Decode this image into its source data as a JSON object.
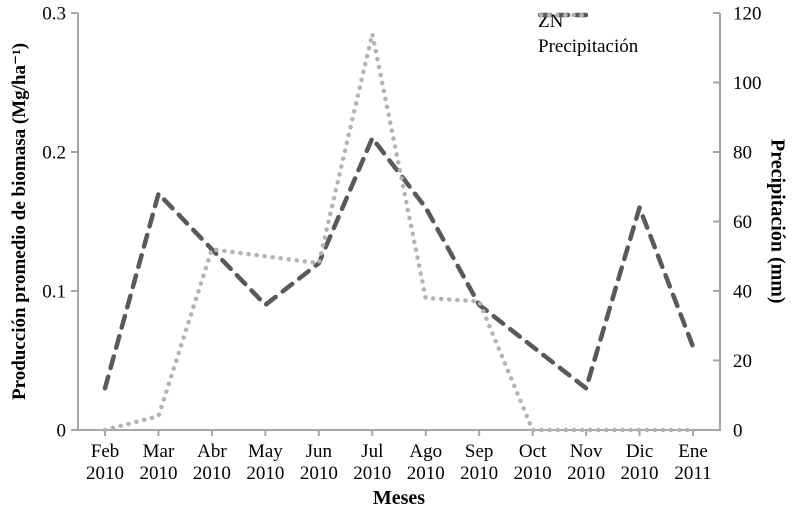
{
  "chart_data": {
    "type": "line",
    "title": "",
    "grid": false,
    "legend_position": "top-right",
    "x_axis": {
      "label": "Meses",
      "categories": [
        {
          "month": "Feb",
          "year": "2010"
        },
        {
          "month": "Mar",
          "year": "2010"
        },
        {
          "month": "Abr",
          "year": "2010"
        },
        {
          "month": "May",
          "year": "2010"
        },
        {
          "month": "Jun",
          "year": "2010"
        },
        {
          "month": "Jul",
          "year": "2010"
        },
        {
          "month": "Ago",
          "year": "2010"
        },
        {
          "month": "Sep",
          "year": "2010"
        },
        {
          "month": "Oct",
          "year": "2010"
        },
        {
          "month": "Nov",
          "year": "2010"
        },
        {
          "month": "Dic",
          "year": "2010"
        },
        {
          "month": "Ene",
          "year": "2011"
        }
      ]
    },
    "left_axis": {
      "label": "Producción promedio de biomasa  (Mg/ha⁻¹)",
      "range": [
        0,
        0.3
      ],
      "ticks": [
        "0",
        "0.1",
        "0.2",
        "0.3"
      ]
    },
    "right_axis": {
      "label": "Precipitación (mm)",
      "range": [
        0,
        120
      ],
      "ticks": [
        "0",
        "20",
        "40",
        "60",
        "80",
        "100",
        "120"
      ]
    },
    "series": [
      {
        "name": "ZN",
        "axis": "left",
        "style": "dashed",
        "color": "#595959",
        "values": [
          0.03,
          0.17,
          0.13,
          0.09,
          0.12,
          0.21,
          0.16,
          0.09,
          0.06,
          0.03,
          0.16,
          0.06
        ]
      },
      {
        "name": "Precipitación",
        "axis": "right",
        "style": "dotted",
        "color": "#b3b3b3",
        "values": [
          0,
          4,
          52,
          50,
          48,
          114,
          38,
          37,
          0,
          0,
          0,
          0
        ]
      }
    ],
    "colors": {
      "axis": "#a6a6a6",
      "text": "#000000",
      "background": "#ffffff"
    }
  }
}
